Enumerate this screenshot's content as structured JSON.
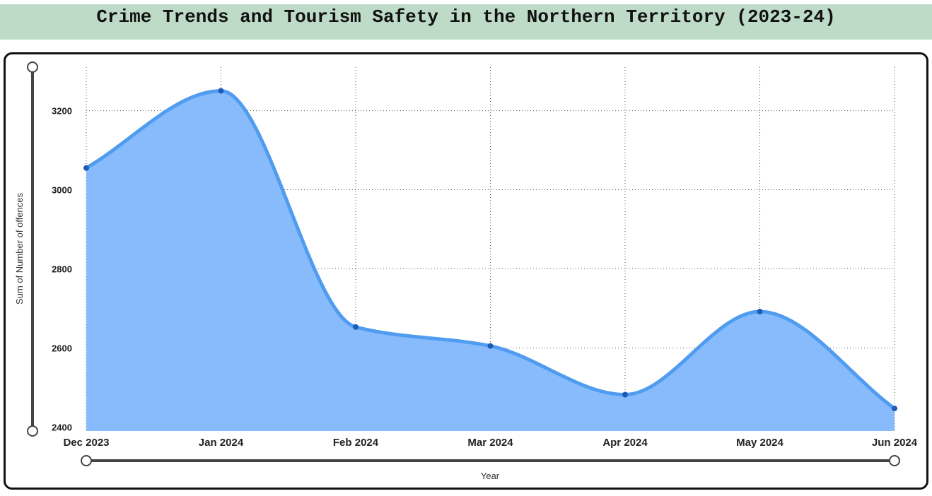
{
  "header": {
    "title": "Crime Trends and Tourism Safety in the Northern Territory (2023-24)"
  },
  "colors": {
    "title_bg": "#bedbc8",
    "area_fill": "#88bbfb",
    "line": "#4f9cf0",
    "marker": "#1d5bb8",
    "slider": "#444444"
  },
  "chart_data": {
    "type": "area",
    "title": "Crime Trends and Tourism Safety in the Northern Territory (2023-24)",
    "xlabel": "Year",
    "ylabel": "Sum of Number of offences",
    "categories": [
      "Dec 2023",
      "Jan 2024",
      "Feb 2024",
      "Mar 2024",
      "Apr 2024",
      "May 2024",
      "Jun 2024"
    ],
    "series": [
      {
        "values": [
          3055,
          3250,
          2653,
          2605,
          2482,
          2692,
          2447
        ]
      }
    ],
    "yticks": [
      2400,
      2600,
      2800,
      3000,
      3200
    ],
    "ylim": [
      2390,
      3310
    ],
    "grid": true,
    "line_shape": "smooth",
    "markers": true
  }
}
